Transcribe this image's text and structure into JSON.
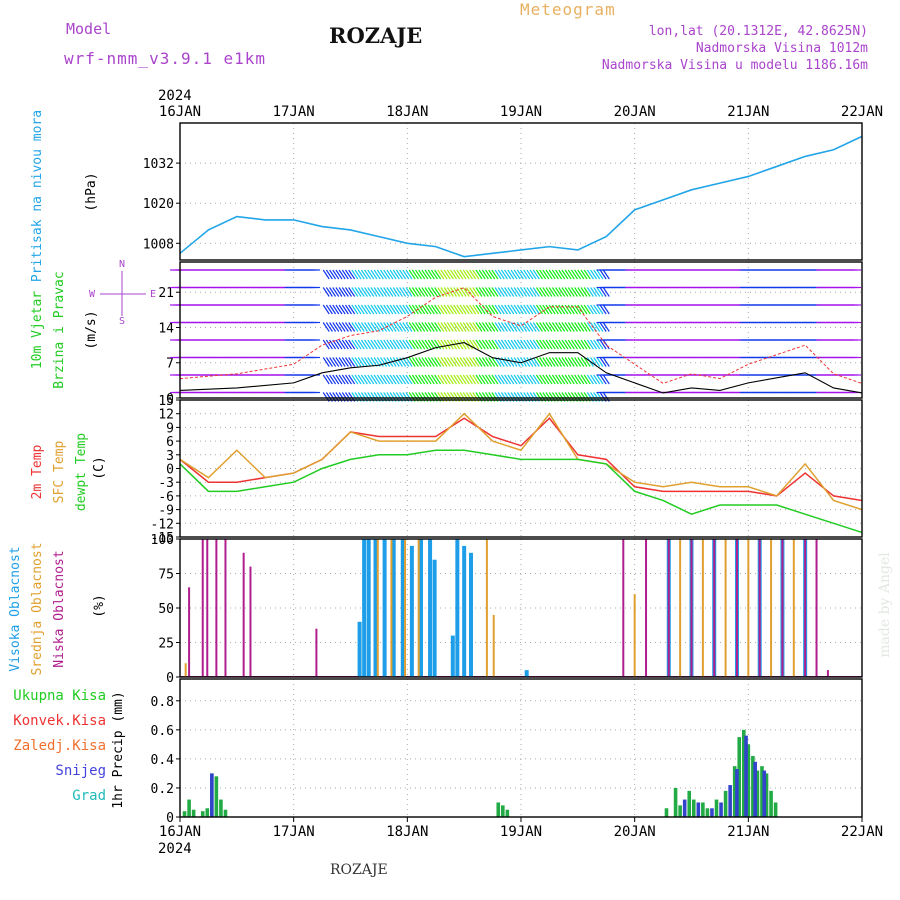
{
  "header": {
    "model_label": "Model",
    "model_name": "wrf-nmm_v3.9.1 e1km",
    "title": "ROZAJE",
    "meteogram_label": "Meteogram",
    "lonlat": "lon,lat (20.1312E, 42.8625N)",
    "elevation": "Nadmorska Visina 1012m",
    "model_elevation": "Nadmorska Visina u modelu 1186.16m",
    "watermark": "made by Angel",
    "footer": "ROZAJE"
  },
  "colors": {
    "pressure": "#22a5e8",
    "temp2m": "#ee3333",
    "sfc": "#e0a030",
    "dewpt": "#22cc22",
    "high_cloud": "#1e9ee8",
    "mid_cloud": "#e0a030",
    "low_cloud": "#b01e8e",
    "precip_total": "#22aa44",
    "precip_snow": "#3344cc",
    "model_text": "#aa44cc",
    "meteogram_text": "#e8b060"
  },
  "chart_data": [
    {
      "type": "line",
      "name": "pressure",
      "ylabel": [
        "Pritisak na nivou mora",
        "(hPa)"
      ],
      "ylim": [
        1003,
        1044
      ],
      "yticks": [
        1008,
        1020,
        1032
      ],
      "x_year": "2024",
      "x_tick_labels": [
        "16JAN",
        "17JAN",
        "18JAN",
        "19JAN",
        "20JAN",
        "21JAN",
        "22JAN"
      ],
      "x_days": [
        0,
        0.25,
        0.5,
        0.75,
        1,
        1.25,
        1.5,
        1.75,
        2,
        2.25,
        2.5,
        2.75,
        3,
        3.25,
        3.5,
        3.75,
        4,
        4.25,
        4.5,
        4.75,
        5,
        5.25,
        5.5,
        5.75,
        6
      ],
      "values": [
        1005,
        1012,
        1016,
        1015,
        1015,
        1013,
        1012,
        1010,
        1008,
        1007,
        1004,
        1005,
        1006,
        1007,
        1006,
        1010,
        1018,
        1021,
        1024,
        1026,
        1028,
        1031,
        1034,
        1036,
        1040
      ],
      "grid": true
    },
    {
      "type": "line",
      "name": "wind",
      "ylabel": [
        "10m Vjetar",
        "Brzina i Pravac",
        "(m/s)"
      ],
      "compass": [
        "N",
        "W",
        "E",
        "S"
      ],
      "ylim": [
        0,
        27
      ],
      "yticks": [
        0,
        7,
        14,
        21
      ],
      "x_days": [
        0,
        0.5,
        1,
        1.25,
        1.5,
        1.75,
        2,
        2.25,
        2.5,
        2.75,
        3,
        3.25,
        3.5,
        3.75,
        4,
        4.25,
        4.5,
        4.75,
        5,
        5.25,
        5.5,
        5.75,
        6
      ],
      "values": [
        1.5,
        2,
        3,
        5,
        6,
        6.5,
        8,
        10,
        11,
        8,
        7,
        9,
        9,
        5,
        3,
        1,
        2,
        1.5,
        3,
        4,
        5,
        2,
        1
      ],
      "grid": true
    },
    {
      "type": "line",
      "ylabel": [
        "2m Temp",
        "SFC Temp",
        "dewpt Temp",
        "(C)"
      ],
      "ylim": [
        -15,
        15
      ],
      "yticks": [
        -15,
        -12,
        -9,
        -6,
        -3,
        0,
        3,
        6,
        9,
        12,
        15
      ],
      "x_days": [
        0,
        0.25,
        0.5,
        0.75,
        1,
        1.25,
        1.5,
        1.75,
        2,
        2.25,
        2.5,
        2.75,
        3,
        3.25,
        3.5,
        3.75,
        4,
        4.25,
        4.5,
        4.75,
        5,
        5.25,
        5.5,
        5.75,
        6
      ],
      "series": [
        {
          "name": "2m Temp",
          "color": "#ee3333",
          "values": [
            2,
            -3,
            -3,
            -2,
            -1,
            2,
            8,
            7,
            7,
            7,
            11,
            7,
            5,
            11,
            3,
            2,
            -4,
            -5,
            -5,
            -5,
            -5,
            -6,
            -1,
            -6,
            -7
          ]
        },
        {
          "name": "SFC Temp",
          "color": "#e0a030",
          "values": [
            2,
            -2,
            4,
            -2,
            -1,
            2,
            8,
            6,
            6,
            6,
            12,
            6,
            4,
            12,
            2,
            1,
            -3,
            -4,
            -3,
            -4,
            -4,
            -6,
            1,
            -7,
            -9
          ]
        },
        {
          "name": "dewpt Temp",
          "color": "#22cc22",
          "values": [
            1,
            -5,
            -5,
            -4,
            -3,
            0,
            2,
            3,
            3,
            4,
            4,
            3,
            2,
            2,
            2,
            1,
            -5,
            -7,
            -10,
            -8,
            -8,
            -8,
            -10,
            -12,
            -14
          ]
        }
      ],
      "grid": true
    },
    {
      "type": "bar",
      "ylabel": [
        "Visoka Oblacnost",
        "Srednja Oblacnost",
        "Niska Oblacnost",
        "(%)"
      ],
      "ylim": [
        0,
        100
      ],
      "yticks": [
        0,
        25,
        50,
        75,
        100
      ],
      "series": [
        {
          "name": "Visoka Oblacnost",
          "color": "#1e9ee8",
          "points": [
            [
              1.58,
              40
            ],
            [
              1.62,
              100
            ],
            [
              1.66,
              100
            ],
            [
              1.72,
              100
            ],
            [
              1.8,
              100
            ],
            [
              1.88,
              100
            ],
            [
              1.96,
              100
            ],
            [
              2.04,
              95
            ],
            [
              2.12,
              100
            ],
            [
              2.2,
              100
            ],
            [
              2.24,
              85
            ],
            [
              2.4,
              30
            ],
            [
              2.44,
              100
            ],
            [
              2.5,
              95
            ],
            [
              2.56,
              90
            ],
            [
              3.05,
              5
            ],
            [
              4.3,
              100
            ],
            [
              4.5,
              100
            ],
            [
              4.7,
              100
            ],
            [
              4.9,
              100
            ],
            [
              5.1,
              100
            ],
            [
              5.3,
              100
            ],
            [
              5.5,
              100
            ]
          ]
        },
        {
          "name": "Srednja Oblacnost",
          "color": "#e0a030",
          "points": [
            [
              0.05,
              10
            ],
            [
              1.74,
              100
            ],
            [
              1.86,
              100
            ],
            [
              1.98,
              100
            ],
            [
              2.1,
              100
            ],
            [
              2.7,
              100
            ],
            [
              2.76,
              45
            ],
            [
              4.0,
              60
            ],
            [
              4.4,
              100
            ],
            [
              4.6,
              100
            ],
            [
              4.8,
              100
            ],
            [
              5.0,
              100
            ],
            [
              5.2,
              100
            ],
            [
              5.4,
              100
            ]
          ]
        },
        {
          "name": "Niska Oblacnost",
          "color": "#b01e8e",
          "points": [
            [
              0.08,
              65
            ],
            [
              0.2,
              100
            ],
            [
              0.24,
              100
            ],
            [
              0.32,
              100
            ],
            [
              0.4,
              100
            ],
            [
              0.56,
              90
            ],
            [
              0.62,
              80
            ],
            [
              1.2,
              35
            ],
            [
              3.9,
              100
            ],
            [
              4.1,
              100
            ],
            [
              4.3,
              100
            ],
            [
              4.5,
              100
            ],
            [
              4.7,
              100
            ],
            [
              4.9,
              100
            ],
            [
              5.1,
              100
            ],
            [
              5.3,
              100
            ],
            [
              5.5,
              100
            ],
            [
              5.6,
              100
            ],
            [
              5.7,
              5
            ]
          ]
        }
      ],
      "grid": true
    },
    {
      "type": "bar",
      "ylabel": [
        "1hr Precip (mm)"
      ],
      "legend_labels": [
        "Ukupna Kisa",
        "Konvek.Kisa",
        "Zaledj.Kisa",
        "Snijeg",
        "Grad"
      ],
      "legend_colors": [
        "#22cc22",
        "#ee3333",
        "#f07030",
        "#4444dd",
        "#22bbbb"
      ],
      "ylim": [
        0,
        0.95
      ],
      "yticks": [
        0,
        0.2,
        0.4,
        0.6,
        0.8
      ],
      "series": [
        {
          "name": "Ukupna Kisa",
          "color": "#22aa44",
          "points": [
            [
              0.04,
              0.04
            ],
            [
              0.08,
              0.12
            ],
            [
              0.12,
              0.05
            ],
            [
              0.2,
              0.04
            ],
            [
              0.24,
              0.06
            ],
            [
              0.28,
              0.3
            ],
            [
              0.32,
              0.28
            ],
            [
              0.36,
              0.12
            ],
            [
              0.4,
              0.05
            ],
            [
              2.8,
              0.1
            ],
            [
              2.84,
              0.08
            ],
            [
              2.88,
              0.05
            ],
            [
              4.28,
              0.06
            ],
            [
              4.36,
              0.2
            ],
            [
              4.4,
              0.08
            ],
            [
              4.48,
              0.18
            ],
            [
              4.52,
              0.12
            ],
            [
              4.6,
              0.1
            ],
            [
              4.64,
              0.06
            ],
            [
              4.72,
              0.12
            ],
            [
              4.8,
              0.18
            ],
            [
              4.88,
              0.35
            ],
            [
              4.92,
              0.55
            ],
            [
              4.96,
              0.6
            ],
            [
              5.0,
              0.5
            ],
            [
              5.04,
              0.42
            ],
            [
              5.08,
              0.32
            ],
            [
              5.12,
              0.35
            ],
            [
              5.16,
              0.3
            ],
            [
              5.2,
              0.18
            ],
            [
              5.24,
              0.1
            ]
          ]
        },
        {
          "name": "Snijeg",
          "color": "#3344cc",
          "points": [
            [
              0.28,
              0.3
            ],
            [
              4.44,
              0.12
            ],
            [
              4.56,
              0.1
            ],
            [
              4.68,
              0.06
            ],
            [
              4.76,
              0.1
            ],
            [
              4.84,
              0.22
            ],
            [
              4.9,
              0.33
            ],
            [
              4.98,
              0.56
            ],
            [
              5.06,
              0.38
            ],
            [
              5.14,
              0.32
            ]
          ]
        }
      ],
      "grid": true
    }
  ]
}
